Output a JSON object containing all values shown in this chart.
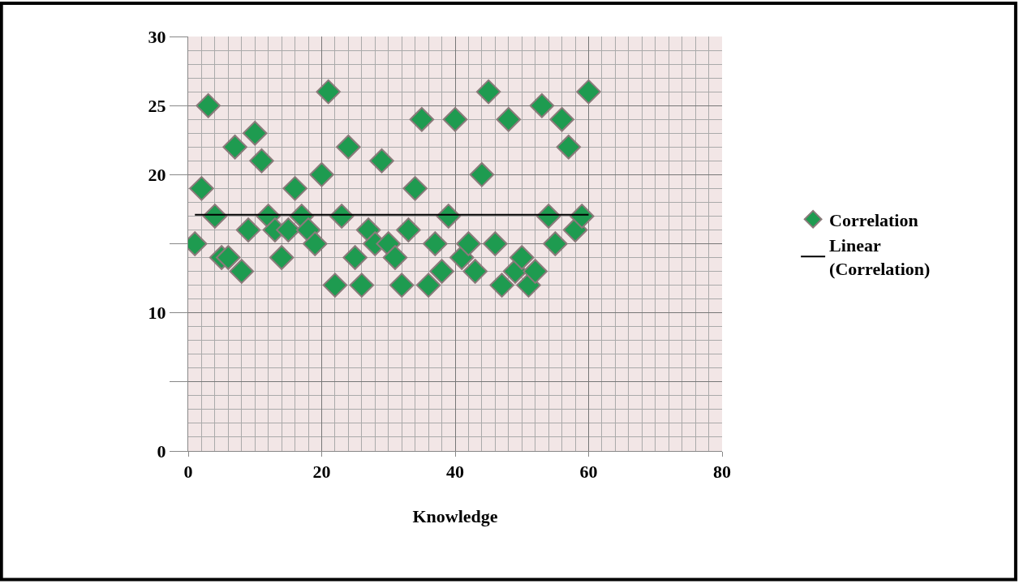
{
  "chart_data": {
    "type": "scatter",
    "xlabel": "Knowledge",
    "xlim": [
      0,
      80
    ],
    "xticks": [
      0,
      20,
      40,
      60,
      80
    ],
    "ylim": [
      0,
      30
    ],
    "yticks": [
      0,
      {
        "value": 5,
        "label": null
      },
      10,
      {
        "value": 15,
        "label": null
      },
      20,
      25,
      30
    ],
    "grid": true,
    "legend": "right",
    "series": [
      {
        "name": "Correlation",
        "marker": "diamond",
        "color": "#1e9b50",
        "x": [
          1,
          2,
          3,
          4,
          5,
          6,
          7,
          8,
          9,
          10,
          11,
          12,
          13,
          14,
          15,
          16,
          17,
          18,
          19,
          20,
          21,
          22,
          23,
          24,
          25,
          26,
          27,
          28,
          29,
          30,
          31,
          32,
          33,
          34,
          35,
          36,
          37,
          38,
          39,
          40,
          41,
          42,
          43,
          44,
          45,
          46,
          47,
          48,
          49,
          50,
          51,
          52,
          53,
          54,
          55,
          56,
          57,
          58,
          59,
          60
        ],
        "values": [
          15,
          19,
          25,
          17,
          14,
          14,
          22,
          13,
          16,
          23,
          21,
          17,
          16,
          14,
          16,
          19,
          17,
          16,
          15,
          20,
          26,
          12,
          17,
          22,
          14,
          12,
          16,
          15,
          21,
          15,
          14,
          12,
          16,
          19,
          24,
          12,
          15,
          13,
          17,
          24,
          14,
          15,
          13,
          20,
          26,
          15,
          12,
          24,
          13,
          14,
          12,
          13,
          25,
          17,
          15,
          24,
          22,
          16,
          17,
          26
        ]
      },
      {
        "name": "Linear (Correlation)",
        "type": "line",
        "color": "#000000",
        "x": [
          1,
          60
        ],
        "values": [
          17.1,
          17.1
        ]
      }
    ]
  }
}
